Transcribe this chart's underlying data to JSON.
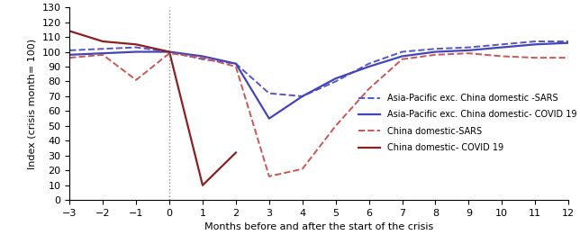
{
  "x": [
    -3,
    -2,
    -1,
    0,
    1,
    2,
    3,
    4,
    5,
    6,
    7,
    8,
    9,
    10,
    11,
    12
  ],
  "ap_sars": [
    101,
    102,
    103,
    100,
    95,
    92,
    72,
    70,
    80,
    92,
    100,
    102,
    103,
    105,
    107,
    107
  ],
  "ap_covid": [
    98,
    99,
    100,
    100,
    97,
    92,
    55,
    70,
    82,
    90,
    97,
    100,
    101,
    103,
    105,
    106
  ],
  "china_sars": [
    96,
    98,
    81,
    99,
    96,
    90,
    16,
    21,
    50,
    75,
    95,
    98,
    99,
    97,
    96,
    96
  ],
  "china_covid": [
    114,
    107,
    105,
    100,
    10,
    32,
    null,
    null,
    null,
    null,
    null,
    null,
    null,
    null,
    null,
    null
  ],
  "ap_sars_color": "#5555cc",
  "ap_covid_color": "#4444bb",
  "china_sars_color": "#cc5555",
  "china_covid_color": "#8b2020",
  "vline_x": 0,
  "xlabel": "Months before and after the start of the crisis",
  "ylabel": "Index (crisis month= 100)",
  "xlim": [
    -3,
    12
  ],
  "ylim": [
    0,
    130
  ],
  "yticks": [
    0,
    10,
    20,
    30,
    40,
    50,
    60,
    70,
    80,
    90,
    100,
    110,
    120,
    130
  ],
  "xticks": [
    -3,
    -2,
    -1,
    0,
    1,
    2,
    3,
    4,
    5,
    6,
    7,
    8,
    9,
    10,
    11,
    12
  ],
  "legend_labels": [
    "Asia-Pacific exc. China domestic -SARS",
    "Asia-Pacific exc. China domestic- COVID 19",
    "China domestic-SARS",
    "China domestic- COVID 19"
  ]
}
